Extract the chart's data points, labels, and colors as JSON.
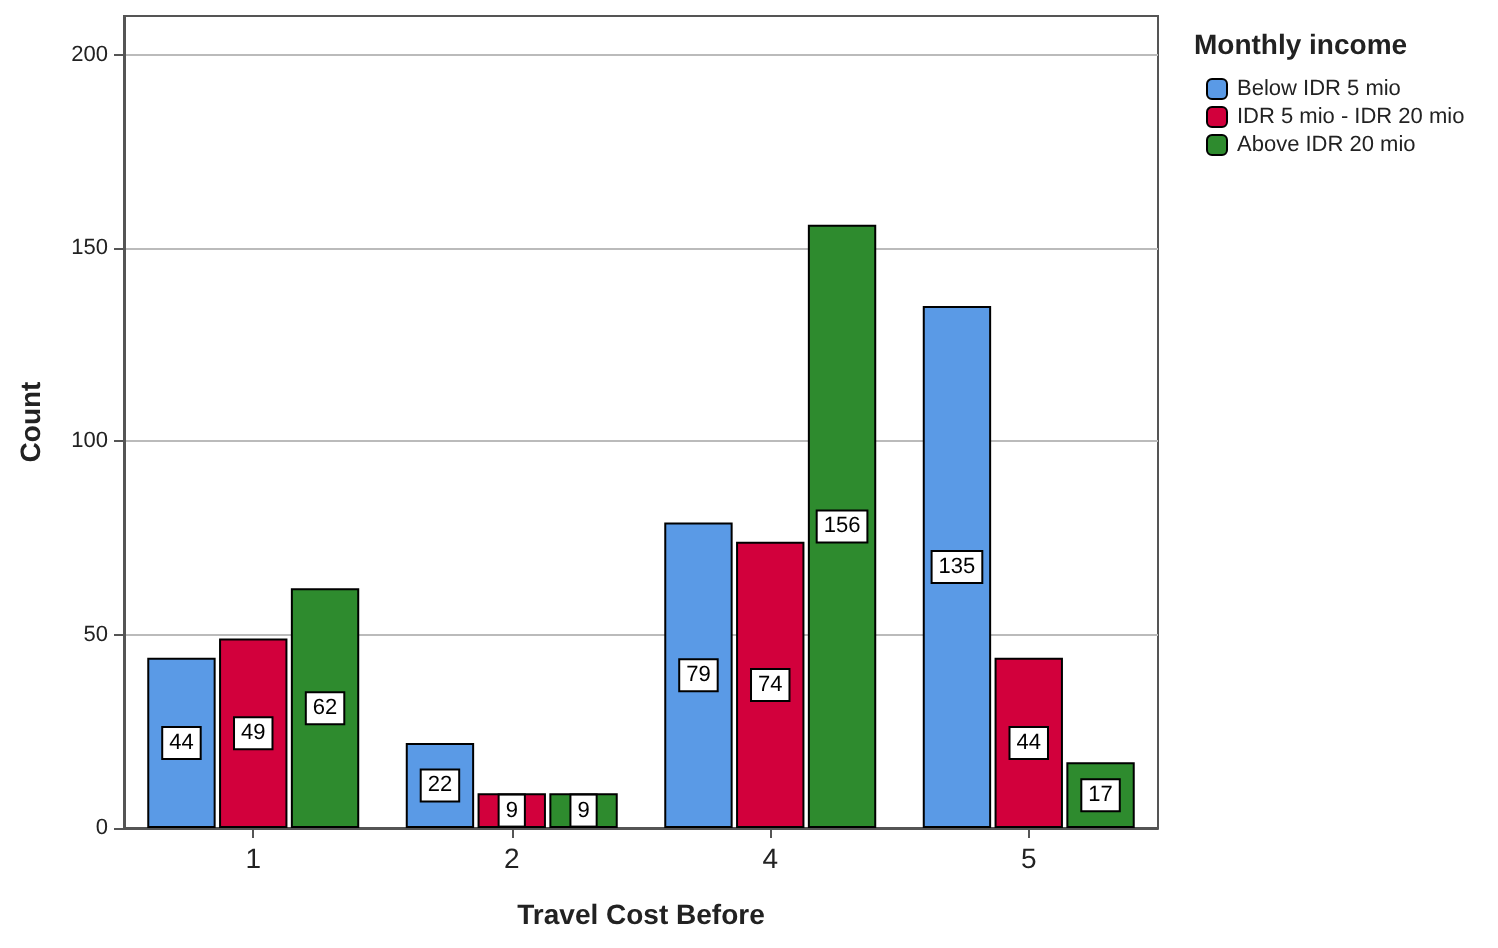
{
  "chart_data": {
    "type": "bar",
    "xlabel": "Travel Cost Before",
    "ylabel": "Count",
    "legend_title": "Monthly income",
    "categories": [
      "1",
      "2",
      "4",
      "5"
    ],
    "series": [
      {
        "name": "Below IDR 5 mio",
        "color": "#5a9ae6",
        "values": [
          44,
          22,
          79,
          135
        ]
      },
      {
        "name": "IDR 5 mio - IDR 20 mio",
        "color": "#d2003c",
        "values": [
          49,
          9,
          74,
          44
        ]
      },
      {
        "name": "Above IDR 20 mio",
        "color": "#2e8b2e",
        "values": [
          62,
          9,
          156,
          17
        ]
      }
    ],
    "ylim": [
      0,
      210
    ],
    "yticks": [
      0,
      50,
      100,
      150,
      200
    ],
    "grid": "y",
    "legend": "top right",
    "data_labels": true
  }
}
